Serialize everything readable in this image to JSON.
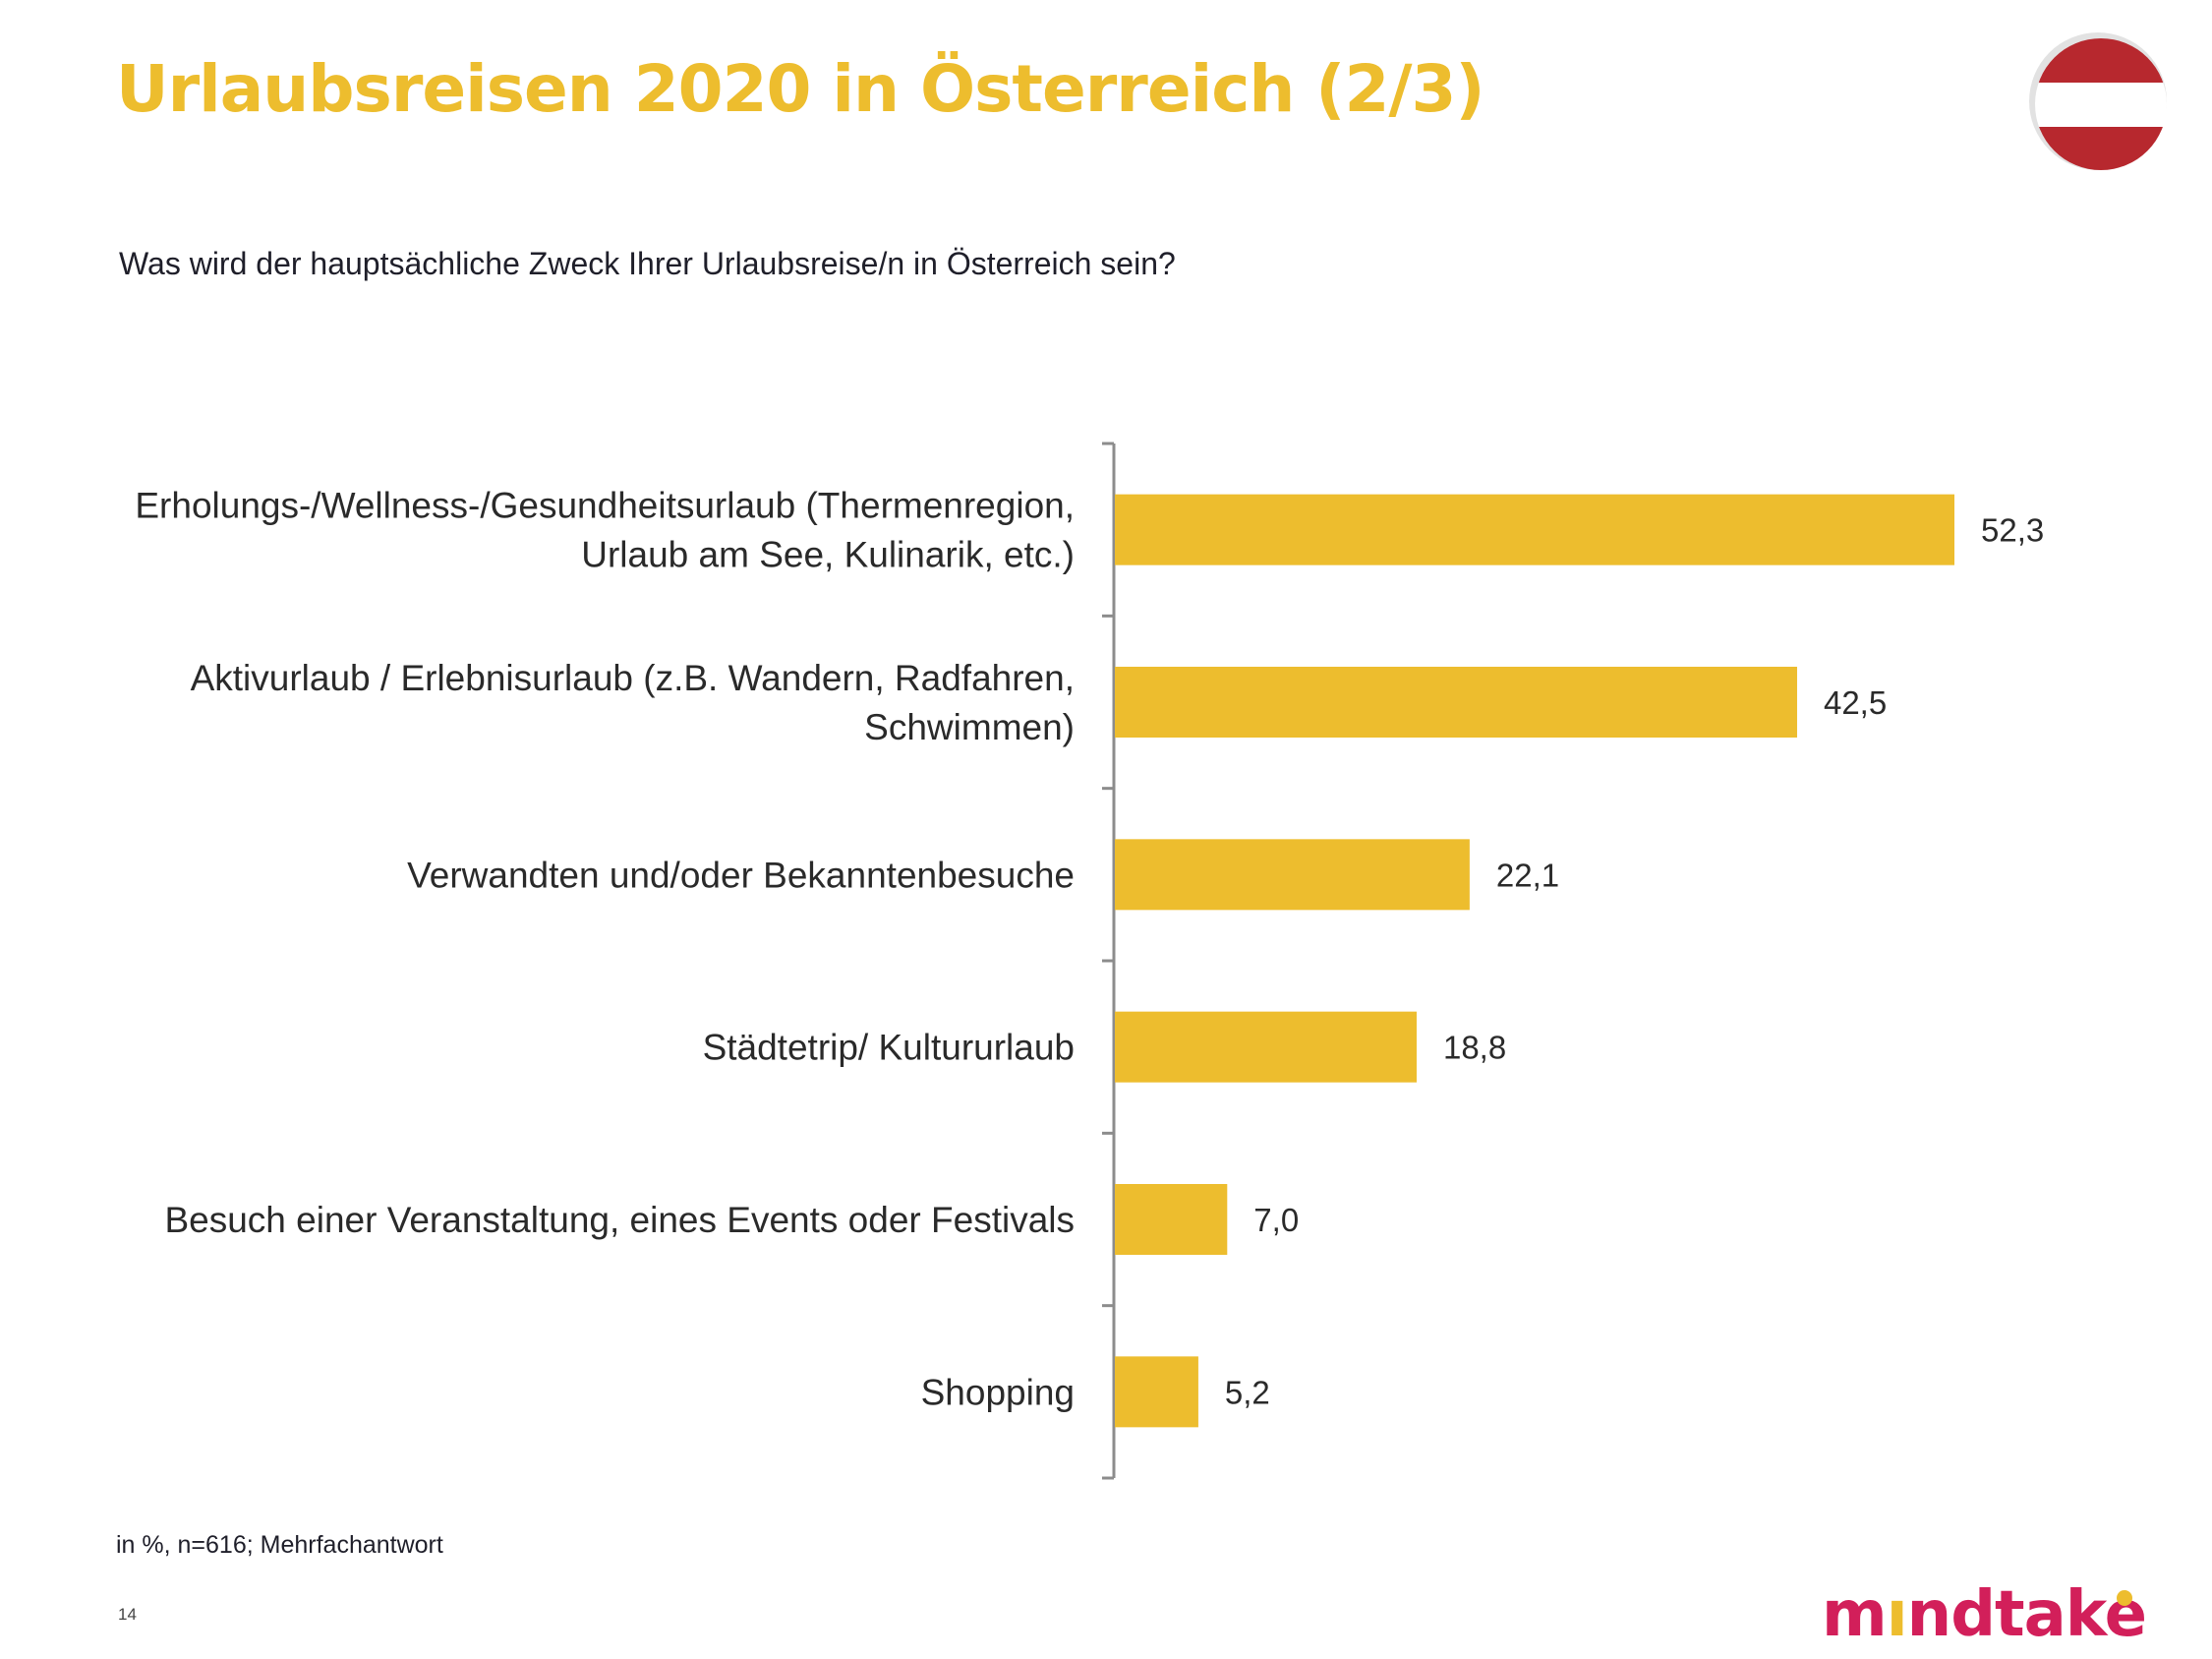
{
  "header": {
    "title": "Urlaubsreisen 2020 in Österreich (2/3)",
    "flag_icon": "austria-flag-icon",
    "flag_colors": [
      "#B7282E",
      "#FFFFFF",
      "#B7282E"
    ]
  },
  "question": "Was wird der hauptsächliche Zweck Ihrer Urlaubsreise/n in Österreich sein?",
  "footer": {
    "note": "in %, n=616; Mehrfachantwort",
    "page_number": "14",
    "logo_text": "mindtake",
    "logo_parts": [
      "m",
      "ı",
      "ndtak",
      "e"
    ]
  },
  "colors": {
    "accent": "#EDBD2E",
    "bar": "#EDBD2E",
    "axis": "#8c8c8c",
    "brand": "#D21F5A"
  },
  "chart_data": {
    "type": "bar",
    "orientation": "horizontal",
    "title": "Was wird der hauptsächliche Zweck Ihrer Urlaubsreise/n in Österreich sein?",
    "xlabel": "",
    "ylabel": "",
    "unit": "%",
    "grid": false,
    "legend": "none",
    "xlim": [
      0,
      60
    ],
    "categories": [
      [
        "Erholungs-/Wellness-/Gesundheitsurlaub (Thermenregion,",
        "Urlaub am See, Kulinarik, etc.)"
      ],
      [
        "Aktivurlaub / Erlebnisurlaub (z.B. Wandern, Radfahren,",
        "Schwimmen)"
      ],
      [
        "Verwandten und/oder Bekanntenbesuche"
      ],
      [
        "Städtetrip/ Kultururlaub"
      ],
      [
        "Besuch einer Veranstaltung, eines Events oder Festivals"
      ],
      [
        "Shopping"
      ]
    ],
    "values": [
      52.3,
      42.5,
      22.1,
      18.8,
      7.0,
      5.2
    ],
    "value_labels": [
      "52,3",
      "42,5",
      "22,1",
      "18,8",
      "7,0",
      "5,2"
    ]
  }
}
